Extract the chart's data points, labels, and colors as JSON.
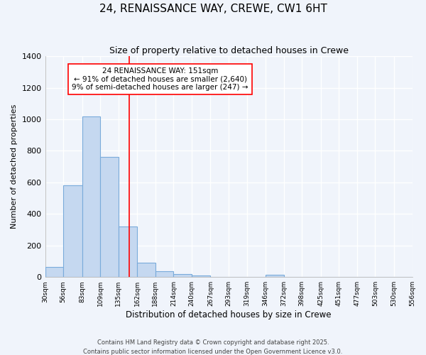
{
  "title1": "24, RENAISSANCE WAY, CREWE, CW1 6HT",
  "title2": "Size of property relative to detached houses in Crewe",
  "xlabel": "Distribution of detached houses by size in Crewe",
  "ylabel": "Number of detached properties",
  "bin_edges": [
    30,
    56,
    83,
    109,
    135,
    162,
    188,
    214,
    240,
    267,
    293,
    319,
    346,
    372,
    398,
    425,
    451,
    477,
    503,
    530,
    556
  ],
  "bar_heights": [
    65,
    580,
    1020,
    760,
    320,
    90,
    38,
    20,
    12,
    0,
    0,
    0,
    15,
    0,
    0,
    0,
    0,
    0,
    0,
    0
  ],
  "bar_color": "#c5d8f0",
  "bar_edge_color": "#7aabdb",
  "red_line_x": 151,
  "annotation_title": "24 RENAISSANCE WAY: 151sqm",
  "annotation_line1": "← 91% of detached houses are smaller (2,640)",
  "annotation_line2": "9% of semi-detached houses are larger (247) →",
  "ylim": [
    0,
    1400
  ],
  "yticks": [
    0,
    200,
    400,
    600,
    800,
    1000,
    1200,
    1400
  ],
  "background_color": "#f0f4fb",
  "grid_color": "#ffffff",
  "footer_line1": "Contains HM Land Registry data © Crown copyright and database right 2025.",
  "footer_line2": "Contains public sector information licensed under the Open Government Licence v3.0."
}
